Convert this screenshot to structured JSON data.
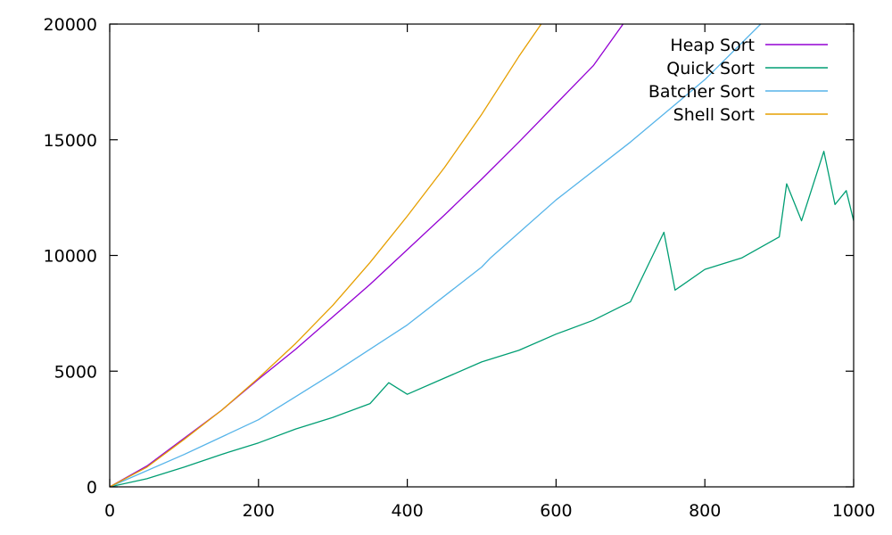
{
  "chart_data": {
    "type": "line",
    "title": "",
    "xlabel": "",
    "ylabel": "",
    "xlim": [
      0,
      1000
    ],
    "ylim": [
      0,
      20000
    ],
    "x_ticks": [
      0,
      200,
      400,
      600,
      800,
      1000
    ],
    "y_ticks": [
      0,
      5000,
      10000,
      15000,
      20000
    ],
    "legend_position": "top-right",
    "grid": false,
    "series": [
      {
        "name": "Heap Sort",
        "color": "#9400d3",
        "x": [
          0,
          50,
          100,
          150,
          200,
          250,
          300,
          350,
          400,
          450,
          500,
          550,
          600,
          650,
          690
        ],
        "y": [
          0,
          900,
          2100,
          3300,
          4650,
          5950,
          7350,
          8750,
          10250,
          11750,
          13300,
          14900,
          16550,
          18200,
          20000
        ]
      },
      {
        "name": "Quick Sort",
        "color": "#009e73",
        "x": [
          0,
          50,
          100,
          150,
          200,
          250,
          300,
          350,
          375,
          400,
          450,
          500,
          550,
          600,
          650,
          700,
          745,
          760,
          800,
          850,
          900,
          910,
          930,
          960,
          975,
          990,
          1000
        ],
        "y": [
          0,
          350,
          850,
          1400,
          1900,
          2500,
          3000,
          3600,
          4500,
          4000,
          4700,
          5400,
          5900,
          6600,
          7200,
          8000,
          11000,
          8500,
          9400,
          9900,
          10800,
          13100,
          11500,
          14500,
          12200,
          12800,
          11500
        ]
      },
      {
        "name": "Batcher Sort",
        "color": "#56b4e9",
        "x": [
          0,
          100,
          200,
          250,
          300,
          400,
          500,
          512,
          600,
          700,
          800,
          875
        ],
        "y": [
          0,
          1400,
          2900,
          3900,
          4900,
          7000,
          9500,
          9900,
          12400,
          14900,
          17600,
          20000
        ]
      },
      {
        "name": "Shell Sort",
        "color": "#e69f00",
        "x": [
          0,
          50,
          100,
          150,
          200,
          250,
          300,
          350,
          400,
          450,
          500,
          550,
          580
        ],
        "y": [
          0,
          850,
          2050,
          3300,
          4700,
          6200,
          7850,
          9700,
          11700,
          13800,
          16100,
          18600,
          20000
        ]
      }
    ]
  }
}
